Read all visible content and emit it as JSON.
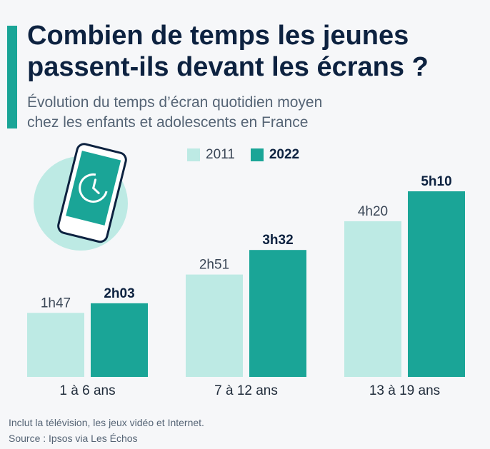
{
  "title_line1": "Combien de temps les jeunes",
  "title_line2": "passent-ils devant les écrans ?",
  "subtitle_line1": "Évolution du temps d’écran quotidien moyen",
  "subtitle_line2": "chez les enfants et adolescents en France",
  "footnote": "Inclut la télévision, les jeux vidéo et Internet.",
  "source": "Source : Ipsos via Les Échos",
  "colors": {
    "s2011": "#bdeae4",
    "s2022": "#1aa597",
    "phone_circle": "#bdeae4"
  },
  "icon": "phone-clock-icon",
  "chart_data": {
    "type": "bar",
    "categories": [
      "1 à 6 ans",
      "7 à 12 ans",
      "13 à 19 ans"
    ],
    "unit": "minutes",
    "ylim": [
      0,
      310
    ],
    "legend_position": "top",
    "series": [
      {
        "name": "2011",
        "values": [
          107,
          171,
          260
        ],
        "labels": [
          "1h47",
          "2h51",
          "4h20"
        ]
      },
      {
        "name": "2022",
        "values": [
          123,
          212,
          310
        ],
        "labels": [
          "2h03",
          "3h32",
          "5h10"
        ]
      }
    ]
  }
}
